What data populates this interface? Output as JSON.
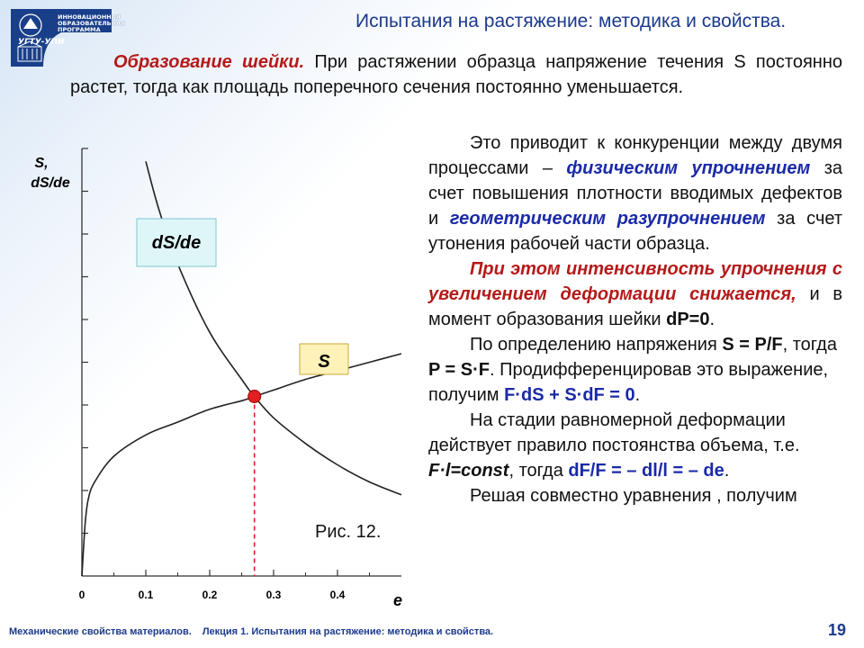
{
  "logo": {
    "lines": [
      "ИННОВАЦИОННАЯ",
      "ОБРАЗОВАТЕЛЬНАЯ",
      "ПРОГРАММА"
    ],
    "name": "УГТУ-УПИ"
  },
  "title": "Испытания на растяжение: методика и свойства.",
  "intro": {
    "lead": "Образование шейки.",
    "text": " При растяжении образца напряжение течения S постоянно растет, тогда как площадь поперечного сечения постоянно уменьшается."
  },
  "paragraphs": {
    "p1_a": "Это приводит к конкуренции между двумя процессами – ",
    "p1_b": "физическим упрочнением",
    "p1_c": " за счет повышения плотности вводимых дефектов и ",
    "p1_d": "геометрическим разупрочнением",
    "p1_e": " за счет утонения рабочей части образца.",
    "p2_a": "При этом интенсивность упрочнения с увеличением деформации снижается,",
    "p2_b": " и в момент образования шейки ",
    "p2_c": "dP=0",
    "p2_d": ".",
    "p3_a": "По определению напряжения ",
    "p3_b": "S = P/F",
    "p3_c": ", тогда ",
    "p3_d": "P = S·F",
    "p3_e": ". Продифференцировав это выражение, получим ",
    "p3_f": "F·dS + S·dF = 0",
    "p3_g": ".",
    "p4_a": "На стадии равномерной деформации действует правило постоянства объема, т.е. ",
    "p4_b": "F·l=const",
    "p4_c": ", тогда ",
    "p4_d": "dF/F = – dl/l = – de",
    "p4_e": ".",
    "p5_a": "Решая совместно уравнения , получим"
  },
  "chart_data": {
    "type": "line",
    "ylabel_line1": "S,",
    "ylabel_line2": "dS/de",
    "xlabel": "e",
    "x_ticks": [
      "0",
      "0.1",
      "0.2",
      "0.3",
      "0.4"
    ],
    "xlim": [
      0,
      0.5
    ],
    "series": [
      {
        "name": "dS/de",
        "x": [
          0.1,
          0.12,
          0.15,
          0.2,
          0.25,
          0.27,
          0.3,
          0.35,
          0.4,
          0.45,
          0.5
        ],
        "y": [
          9.7,
          8.6,
          7.3,
          5.7,
          4.6,
          4.2,
          3.7,
          3.1,
          2.6,
          2.2,
          1.9
        ]
      },
      {
        "name": "S",
        "x": [
          0,
          0.005,
          0.01,
          0.02,
          0.05,
          0.1,
          0.15,
          0.2,
          0.25,
          0.27,
          0.3,
          0.35,
          0.4,
          0.45,
          0.5
        ],
        "y": [
          0,
          1.2,
          1.8,
          2.2,
          2.8,
          3.3,
          3.6,
          3.9,
          4.1,
          4.2,
          4.35,
          4.6,
          4.8,
          5.0,
          5.2
        ]
      }
    ],
    "intersection": {
      "x": 0.27,
      "y": 4.2
    },
    "ylim": [
      0,
      10
    ],
    "label_dsde": "dS/de",
    "label_s": "S",
    "caption": "Рис. 12."
  },
  "footer": {
    "left": "Механические свойства материалов.",
    "right": "Лекция 1. Испытания на растяжение: методика и свойства."
  },
  "page_number": "19",
  "colors": {
    "title": "#1b3a8c",
    "emphasis_red": "#b51a1a",
    "emphasis_blue": "#1a2aa8",
    "marker": "#e02020",
    "label_bg_dsde": "#dff6f8",
    "label_bg_s": "#fff2b8"
  }
}
